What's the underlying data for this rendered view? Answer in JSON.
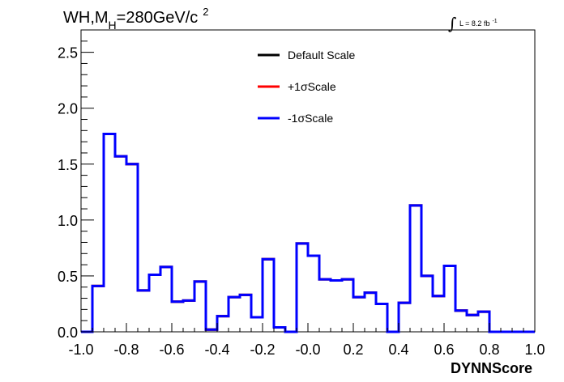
{
  "chart_data": {
    "type": "line",
    "title": {
      "main": "WH,M",
      "subscript": "H",
      "rest": "=280GeV/c",
      "superscript": "2"
    },
    "luminosity": {
      "symbol": "∫",
      "text": "L = 8.2 fb",
      "superscript": "-1"
    },
    "xlabel": "DYNNScore",
    "ylabel": "",
    "xlim": [
      -1.0,
      1.0
    ],
    "ylim": [
      0.0,
      2.7
    ],
    "x_ticks": [
      "-1.0",
      "-0.8",
      "-0.6",
      "-0.4",
      "-0.2",
      "-0.0",
      "0.2",
      "0.4",
      "0.6",
      "0.8",
      "1.0"
    ],
    "y_ticks": [
      "0.0",
      "0.5",
      "1.0",
      "1.5",
      "2.0",
      "2.5"
    ],
    "bin_edges_start": -1.0,
    "bin_width": 0.05,
    "legend_position": "top-center",
    "series": [
      {
        "name": "Default Scale",
        "color": "#000000",
        "values": [
          0.0,
          0.41,
          1.77,
          1.57,
          1.5,
          0.37,
          0.51,
          0.58,
          0.27,
          0.28,
          0.45,
          0.02,
          0.14,
          0.31,
          0.33,
          0.13,
          0.65,
          0.04,
          0.0,
          0.79,
          0.68,
          0.47,
          0.46,
          0.47,
          0.31,
          0.35,
          0.25,
          0.0,
          0.26,
          1.13,
          0.5,
          0.32,
          0.59,
          0.19,
          0.15,
          0.18,
          0.0,
          0.0,
          0.0,
          0.0
        ]
      },
      {
        "name": "+1σScale",
        "color": "#ff0000",
        "values": [
          0.0,
          0.41,
          1.77,
          1.57,
          1.5,
          0.37,
          0.51,
          0.58,
          0.27,
          0.28,
          0.45,
          0.02,
          0.14,
          0.31,
          0.33,
          0.13,
          0.65,
          0.04,
          0.0,
          0.79,
          0.68,
          0.47,
          0.46,
          0.47,
          0.31,
          0.35,
          0.25,
          0.0,
          0.26,
          1.13,
          0.5,
          0.32,
          0.59,
          0.19,
          0.15,
          0.18,
          0.0,
          0.0,
          0.0,
          0.0
        ]
      },
      {
        "name": "-1σScale",
        "color": "#0000ff",
        "values": [
          0.0,
          0.41,
          1.77,
          1.57,
          1.5,
          0.37,
          0.51,
          0.58,
          0.27,
          0.28,
          0.45,
          0.02,
          0.14,
          0.31,
          0.33,
          0.13,
          0.65,
          0.04,
          0.0,
          0.79,
          0.68,
          0.47,
          0.46,
          0.47,
          0.31,
          0.35,
          0.25,
          0.0,
          0.26,
          1.13,
          0.5,
          0.32,
          0.59,
          0.19,
          0.15,
          0.18,
          0.0,
          0.0,
          0.0,
          0.0
        ]
      }
    ]
  }
}
